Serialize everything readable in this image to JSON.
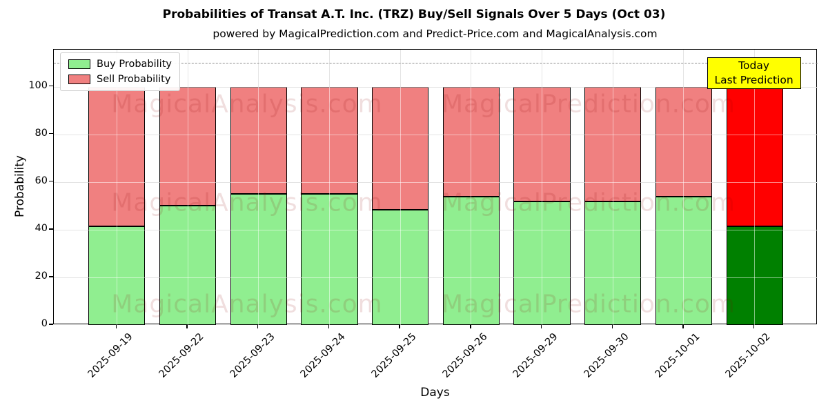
{
  "subtitle": "powered by MagicalPrediction.com and Predict-Price.com and MagicalAnalysis.com",
  "watermarks": {
    "left": "MagicalAnalysis.com",
    "right": "MagicalPrediction.com"
  },
  "annotation": {
    "line1": "Today",
    "line2": "Last Prediction"
  },
  "legend": {
    "items": [
      {
        "label": "Buy Probability",
        "color": "#90ee90"
      },
      {
        "label": "Sell Probability",
        "color": "#f08080"
      }
    ]
  },
  "colors": {
    "buy_normal": "#90ee90",
    "sell_normal": "#f08080",
    "buy_today": "#008000",
    "sell_today": "#ff0000",
    "bar_edge": "#000000",
    "dashed_line": "#8a8a8a",
    "annotation_bg": "#ffff00"
  },
  "chart_data": {
    "type": "bar",
    "stacked": true,
    "title": "Probabilities of Transat A.T. Inc. (TRZ) Buy/Sell Signals Over 5 Days (Oct 03)",
    "xlabel": "Days",
    "ylabel": "Probability",
    "categories": [
      "2025-09-19",
      "2025-09-22",
      "2025-09-23",
      "2025-09-24",
      "2025-09-25",
      "2025-09-26",
      "2025-09-29",
      "2025-09-30",
      "2025-10-01",
      "2025-10-02"
    ],
    "series": [
      {
        "name": "Buy Probability",
        "values": [
          41.3,
          50.0,
          55.1,
          55.1,
          48.2,
          53.8,
          51.8,
          51.8,
          53.7,
          41.4
        ]
      },
      {
        "name": "Sell Probability",
        "values": [
          58.7,
          50.0,
          44.9,
          44.9,
          51.8,
          46.2,
          48.2,
          48.2,
          46.3,
          58.6
        ]
      }
    ],
    "yticks": [
      0,
      20,
      40,
      60,
      80,
      100
    ],
    "ylim": [
      0,
      115.5
    ],
    "dashed_line_y": 110,
    "grid": true,
    "legend_position": "upper left",
    "today_index": 9
  }
}
